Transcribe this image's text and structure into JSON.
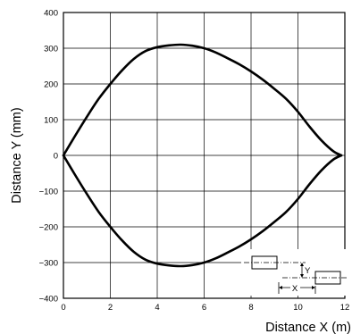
{
  "chart_data": {
    "type": "line",
    "xlabel": "Distance X (m)",
    "ylabel": "Distance Y (mm)",
    "xlim": [
      0,
      12
    ],
    "ylim": [
      -400,
      400
    ],
    "grid": true,
    "x_ticks": [
      0,
      2,
      4,
      6,
      8,
      10,
      12
    ],
    "y_ticks": [
      400,
      300,
      200,
      100,
      0,
      -100,
      -200,
      -300,
      -400
    ],
    "x_tick_labels": [
      "0",
      "2",
      "4",
      "6",
      "8",
      "10",
      "12"
    ],
    "y_tick_labels": [
      "400",
      "300",
      "200",
      "100",
      "0",
      "−100",
      "−200",
      "−300",
      "−400"
    ],
    "series": [
      {
        "color": "#000000",
        "x": [
          0,
          0.5,
          1,
          1.5,
          2,
          2.5,
          3,
          3.5,
          4,
          4.5,
          5,
          5.5,
          6,
          6.5,
          7,
          7.5,
          8,
          8.5,
          9,
          9.5,
          10,
          10.5,
          11,
          11.5,
          11.85
        ],
        "y": [
          0,
          55,
          108,
          158,
          200,
          238,
          270,
          292,
          303,
          308,
          310,
          307,
          300,
          288,
          272,
          255,
          235,
          212,
          186,
          158,
          122,
          80,
          42,
          12,
          0
        ]
      },
      {
        "color": "#000000",
        "x": [
          0,
          0.5,
          1,
          1.5,
          2,
          2.5,
          3,
          3.5,
          4,
          4.5,
          5,
          5.5,
          6,
          6.5,
          7,
          7.5,
          8,
          8.5,
          9,
          9.5,
          10,
          10.5,
          11,
          11.5,
          11.85
        ],
        "y": [
          0,
          -55,
          -108,
          -158,
          -200,
          -238,
          -270,
          -292,
          -303,
          -308,
          -310,
          -307,
          -300,
          -288,
          -272,
          -255,
          -235,
          -212,
          -186,
          -158,
          -122,
          -80,
          -42,
          -12,
          0
        ]
      }
    ],
    "inset": {
      "labels": {
        "y": "Y",
        "x": "X"
      }
    }
  }
}
